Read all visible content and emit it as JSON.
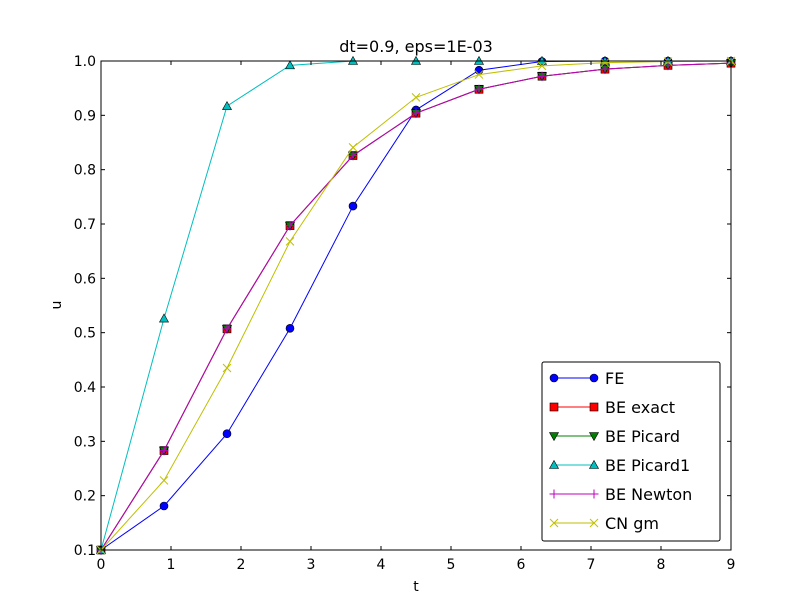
{
  "chart_data": {
    "type": "line",
    "title": "dt=0.9, eps=1E-03",
    "xlabel": "t",
    "ylabel": "u",
    "xlim": [
      0,
      9
    ],
    "ylim": [
      0.1,
      1.0
    ],
    "xticks": [
      "0",
      "1",
      "2",
      "3",
      "4",
      "5",
      "6",
      "7",
      "8",
      "9"
    ],
    "yticks": [
      "0.1",
      "0.2",
      "0.3",
      "0.4",
      "0.5",
      "0.6",
      "0.7",
      "0.8",
      "0.9",
      "1.0"
    ],
    "grid": false,
    "legend_position": "lower-right",
    "x": [
      0,
      0.9,
      1.8,
      2.7,
      3.6,
      4.5,
      5.4,
      6.3,
      7.2,
      8.1,
      9.0
    ],
    "series": [
      {
        "name": "FE",
        "color": "#0000ff",
        "marker": "circle",
        "values": [
          0.1,
          0.181,
          0.314,
          0.508,
          0.733,
          0.91,
          0.983,
          0.999,
          1.0,
          1.0,
          1.0
        ]
      },
      {
        "name": "BE exact",
        "color": "#ff0000",
        "marker": "square",
        "values": [
          0.1,
          0.283,
          0.507,
          0.697,
          0.826,
          0.904,
          0.948,
          0.972,
          0.985,
          0.992,
          0.996
        ]
      },
      {
        "name": "BE Picard",
        "color": "#008000",
        "marker": "triangle-down",
        "values": [
          0.1,
          0.283,
          0.507,
          0.697,
          0.826,
          0.904,
          0.948,
          0.972,
          0.985,
          0.992,
          0.996
        ]
      },
      {
        "name": "BE Picard1",
        "color": "#00bfbf",
        "marker": "triangle-up",
        "values": [
          0.1,
          0.526,
          0.917,
          0.992,
          1.0,
          1.0,
          1.0,
          1.0,
          1.0,
          1.0,
          1.0
        ]
      },
      {
        "name": "BE Newton",
        "color": "#bf00bf",
        "marker": "plus",
        "values": [
          0.1,
          0.283,
          0.507,
          0.697,
          0.826,
          0.904,
          0.948,
          0.972,
          0.985,
          0.992,
          0.996
        ]
      },
      {
        "name": "CN gm",
        "color": "#bfbf00",
        "marker": "x",
        "values": [
          0.1,
          0.228,
          0.435,
          0.668,
          0.841,
          0.933,
          0.975,
          0.991,
          0.997,
          0.999,
          1.0
        ]
      }
    ]
  }
}
